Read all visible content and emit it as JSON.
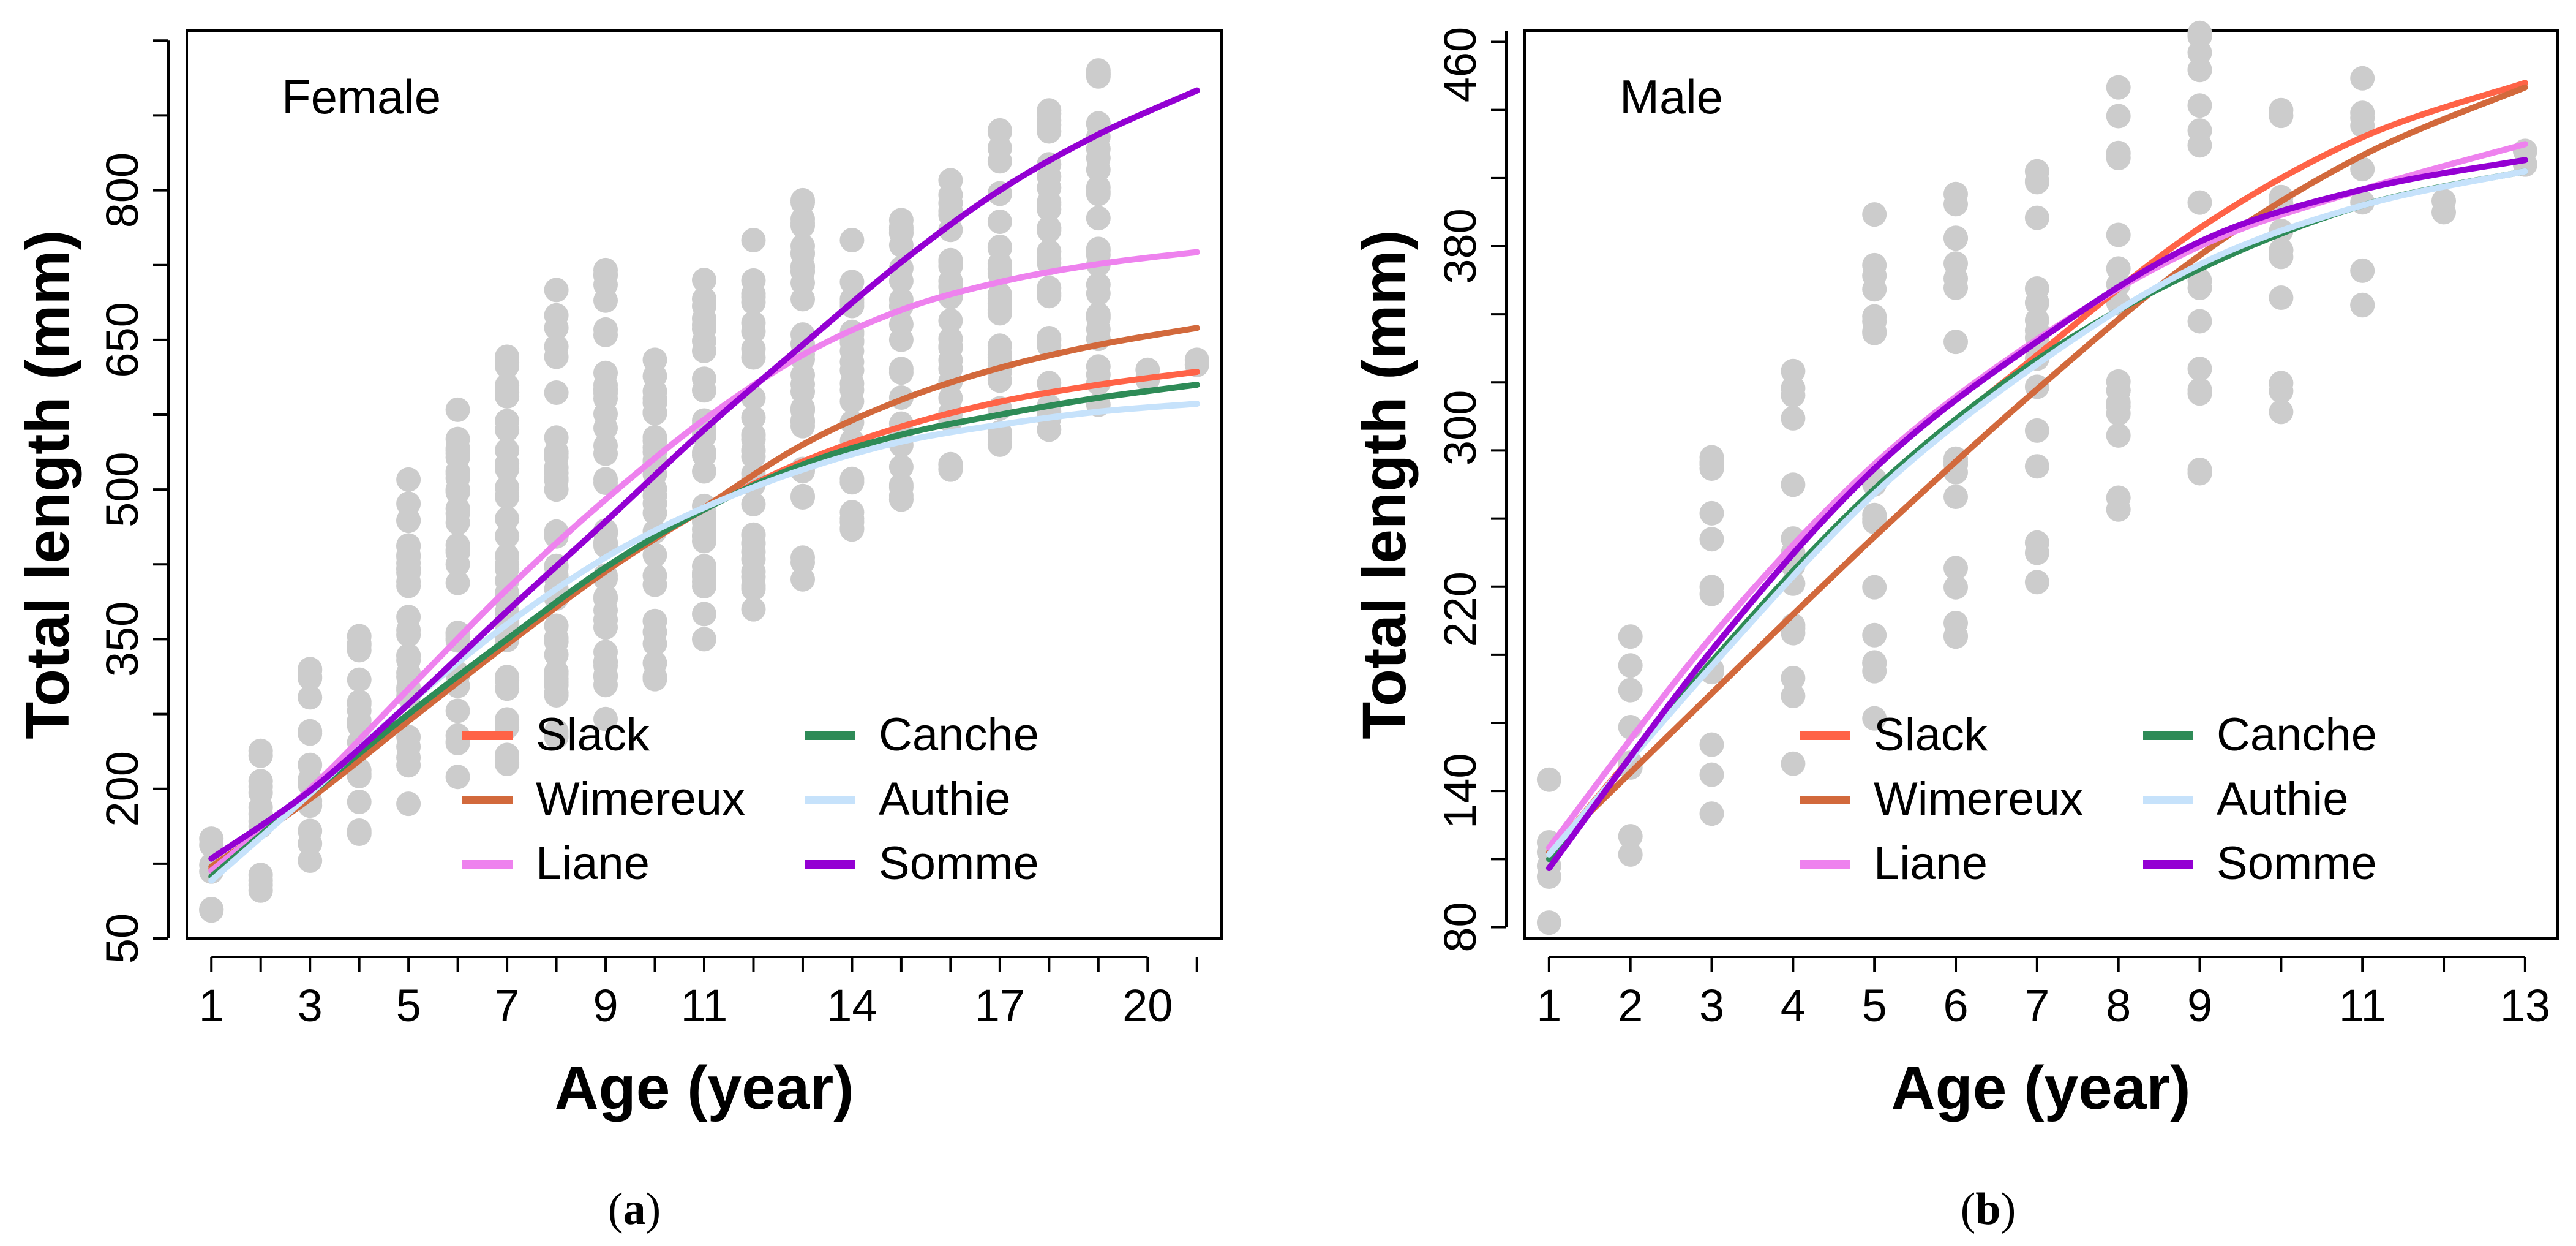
{
  "chart_data": [
    {
      "type": "scatter",
      "panel_label": "a",
      "title": "Female",
      "xlabel": "Age (year)",
      "ylabel": "Total length (mm)",
      "xlim": [
        0.5,
        21.5
      ],
      "ylim": [
        50,
        960
      ],
      "xticks": [
        1,
        3,
        5,
        7,
        9,
        11,
        14,
        17,
        20
      ],
      "yticks": [
        50,
        200,
        350,
        500,
        650,
        800
      ],
      "legend_position": "bottom-right",
      "grid": false,
      "scatter": {
        "name": "observations",
        "color": "#cccccc",
        "columns": [
          {
            "x": 1,
            "min": 78,
            "max": 150
          },
          {
            "x": 2,
            "min": 98,
            "max": 238
          },
          {
            "x": 3,
            "min": 128,
            "max": 320
          },
          {
            "x": 4,
            "min": 155,
            "max": 353
          },
          {
            "x": 5,
            "min": 185,
            "max": 510
          },
          {
            "x": 6,
            "min": 212,
            "max": 580
          },
          {
            "x": 7,
            "min": 225,
            "max": 633
          },
          {
            "x": 8,
            "min": 252,
            "max": 700
          },
          {
            "x": 9,
            "min": 270,
            "max": 720
          },
          {
            "x": 10,
            "min": 310,
            "max": 630
          },
          {
            "x": 11,
            "min": 350,
            "max": 710
          },
          {
            "x": 12,
            "min": 380,
            "max": 750
          },
          {
            "x": 13,
            "min": 410,
            "max": 790
          },
          {
            "x": 14,
            "min": 460,
            "max": 750
          },
          {
            "x": 15,
            "min": 490,
            "max": 770
          },
          {
            "x": 16,
            "min": 520,
            "max": 810
          },
          {
            "x": 17,
            "min": 545,
            "max": 860
          },
          {
            "x": 18,
            "min": 560,
            "max": 880
          },
          {
            "x": 19,
            "min": 585,
            "max": 920
          },
          {
            "x": 20,
            "min": 610,
            "max": 620
          },
          {
            "x": 21,
            "min": 625,
            "max": 630
          }
        ]
      },
      "x": [
        1,
        3,
        5,
        7,
        9,
        11,
        13,
        15,
        17,
        19,
        21
      ],
      "series": [
        {
          "name": "Slack",
          "color": "#ff6347",
          "values": [
            120,
            192,
            270,
            345,
            418,
            480,
            528,
            563,
            588,
            605,
            618
          ]
        },
        {
          "name": "Wimereux",
          "color": "#d2693c",
          "values": [
            122,
            190,
            268,
            345,
            418,
            482,
            545,
            590,
            622,
            645,
            662
          ]
        },
        {
          "name": "Liane",
          "color": "#ee82ee",
          "values": [
            118,
            200,
            300,
            400,
            490,
            570,
            635,
            680,
            708,
            726,
            738
          ]
        },
        {
          "name": "Canche",
          "color": "#2e8b57",
          "values": [
            112,
            195,
            275,
            350,
            422,
            480,
            525,
            555,
            575,
            592,
            605
          ]
        },
        {
          "name": "Authie",
          "color": "#c6e2fb",
          "values": [
            108,
            195,
            285,
            365,
            432,
            482,
            520,
            548,
            565,
            578,
            586
          ]
        },
        {
          "name": "Somme",
          "color": "#9400d3",
          "values": [
            130,
            198,
            285,
            378,
            468,
            560,
            645,
            728,
            800,
            856,
            900
          ]
        }
      ]
    },
    {
      "type": "scatter",
      "panel_label": "b",
      "title": "Male",
      "xlabel": "Age (year)",
      "ylabel": "Total length (mm)",
      "xlim": [
        0.7,
        13.4
      ],
      "ylim": [
        75,
        475
      ],
      "xticks": [
        1,
        2,
        3,
        4,
        5,
        6,
        7,
        8,
        9,
        11,
        13
      ],
      "yticks": [
        80,
        140,
        220,
        300,
        380,
        460
      ],
      "legend_position": "bottom-right",
      "grid": false,
      "scatter": {
        "name": "observations",
        "color": "#cccccc",
        "columns": [
          {
            "x": 1,
            "min": 82,
            "max": 145
          },
          {
            "x": 2,
            "min": 112,
            "max": 208
          },
          {
            "x": 3,
            "min": 130,
            "max": 287
          },
          {
            "x": 4,
            "min": 152,
            "max": 325
          },
          {
            "x": 5,
            "min": 172,
            "max": 394
          },
          {
            "x": 6,
            "min": 208,
            "max": 403
          },
          {
            "x": 7,
            "min": 232,
            "max": 413
          },
          {
            "x": 8,
            "min": 264,
            "max": 450
          },
          {
            "x": 9,
            "min": 280,
            "max": 474
          },
          {
            "x": 10,
            "min": 307,
            "max": 440
          },
          {
            "x": 11,
            "min": 354,
            "max": 454
          },
          {
            "x": 12,
            "min": 395,
            "max": 400
          },
          {
            "x": 13,
            "min": 416,
            "max": 422
          }
        ]
      },
      "x": [
        1,
        3,
        5,
        7,
        9,
        11,
        13
      ],
      "series": [
        {
          "name": "Slack",
          "color": "#ff6347",
          "values": [
            112,
            196,
            272,
            332,
            388,
            428,
            452
          ]
        },
        {
          "name": "Wimereux",
          "color": "#d2693c",
          "values": [
            113,
            183,
            252,
            317,
            376,
            420,
            450
          ]
        },
        {
          "name": "Liane",
          "color": "#ee82ee",
          "values": [
            115,
            208,
            284,
            339,
            380,
            405,
            425
          ]
        },
        {
          "name": "Canche",
          "color": "#2e8b57",
          "values": [
            110,
            197,
            273,
            330,
            370,
            398,
            413
          ]
        },
        {
          "name": "Authie",
          "color": "#c6e2fb",
          "values": [
            112,
            195,
            271,
            328,
            372,
            398,
            413
          ]
        },
        {
          "name": "Somme",
          "color": "#9400d3",
          "values": [
            106,
            202,
            282,
            338,
            382,
            405,
            418
          ]
        }
      ]
    }
  ],
  "captions": {
    "a": {
      "open": "(",
      "letter": "a",
      "close": ")"
    },
    "b": {
      "open": "(",
      "letter": "b",
      "close": ")"
    }
  }
}
